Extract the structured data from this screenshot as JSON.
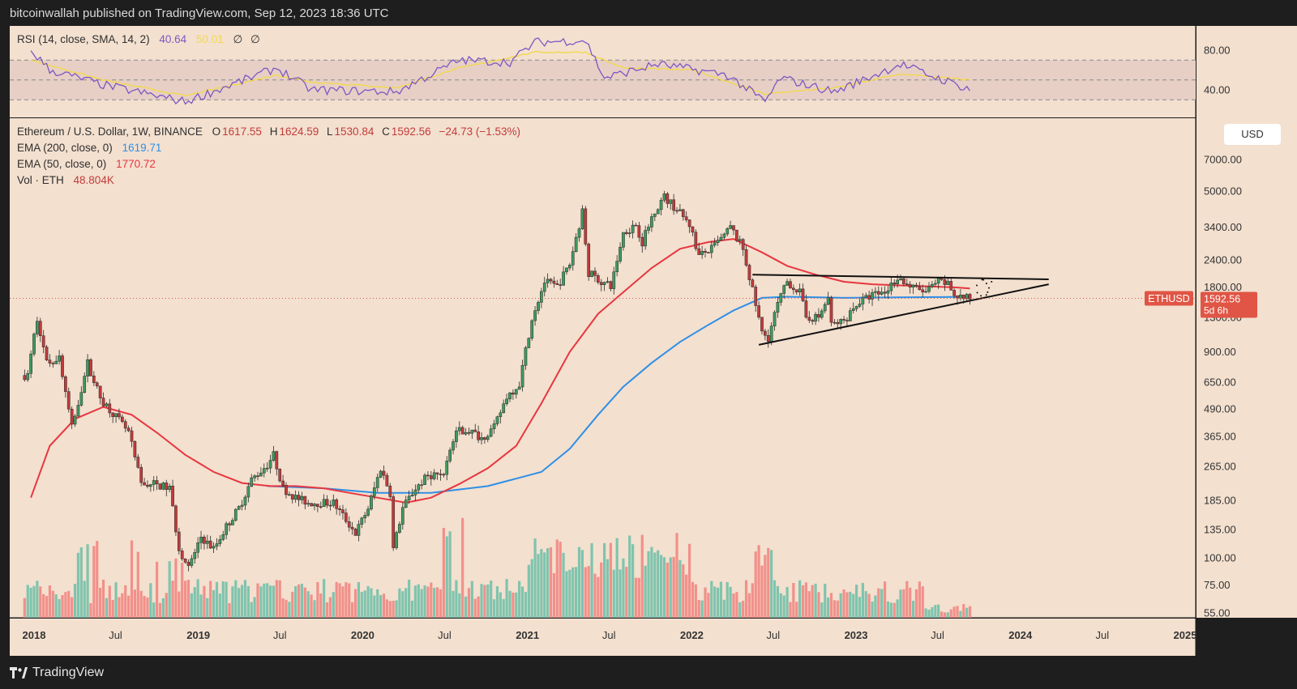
{
  "header": {
    "published_text": "bitcoinwallah published on TradingView.com, Sep 12, 2023 18:36 UTC"
  },
  "footer": {
    "brand": "TradingView"
  },
  "rsi_legend": {
    "name": "RSI (14, close, SMA, 14, 2)",
    "rsi_value": "40.64",
    "sma_value": "50.01",
    "extra1": "∅",
    "extra2": "∅"
  },
  "price_legend": {
    "symbol": "Ethereum / U.S. Dollar, 1W, BINANCE",
    "o_label": "O",
    "o_value": "1617.55",
    "h_label": "H",
    "h_value": "1624.59",
    "l_label": "L",
    "l_value": "1530.84",
    "c_label": "C",
    "c_value": "1592.56",
    "change": "−24.73 (−1.53%)",
    "ema200_label": "EMA (200, close, 0)",
    "ema200_value": "1619.71",
    "ema50_label": "EMA (50, close, 0)",
    "ema50_value": "1770.72",
    "vol_label": "Vol · ETH",
    "vol_value": "48.804K"
  },
  "currency_button": "USD",
  "price_tag": {
    "label": "ETHUSD",
    "value": "1592.56",
    "countdown": "5d 6h"
  },
  "colors": {
    "background": "#f3e0cf",
    "up_candle": "#3d9b5e",
    "down_candle": "#c23b3b",
    "ema50": "#e8363f",
    "ema200": "#2f8fe6",
    "rsi": "#7e57c2",
    "rsi_sma": "#f2d94e",
    "vol_up": "#7fc4ae",
    "vol_down": "#f2908a",
    "price_tag": "#e05545"
  },
  "chart_data": {
    "type": "candlestick",
    "title": "Ethereum / U.S. Dollar, 1W, BINANCE",
    "scale": "log",
    "y_ticks": [
      "7000.00",
      "5000.00",
      "3400.00",
      "2400.00",
      "1800.00",
      "1300.00",
      "900.00",
      "650.00",
      "490.00",
      "365.00",
      "265.00",
      "185.00",
      "135.00",
      "100.00",
      "75.00",
      "55.00"
    ],
    "x_ticks": [
      "2018",
      "Jul",
      "2019",
      "Jul",
      "2020",
      "Jul",
      "2021",
      "Jul",
      "2022",
      "Jul",
      "2023",
      "Jul",
      "2024",
      "Jul",
      "2025"
    ],
    "rsi_y_ticks": [
      "80.00",
      "40.00"
    ],
    "price_path": [
      [
        "2017-12-25",
        700
      ],
      [
        "2018-01-15",
        1300
      ],
      [
        "2018-02-05",
        800
      ],
      [
        "2018-03-05",
        850
      ],
      [
        "2018-04-02",
        400
      ],
      [
        "2018-05-07",
        800
      ],
      [
        "2018-06-04",
        550
      ],
      [
        "2018-07-02",
        470
      ],
      [
        "2018-08-06",
        380
      ],
      [
        "2018-09-03",
        220
      ],
      [
        "2018-10-01",
        220
      ],
      [
        "2018-11-05",
        210
      ],
      [
        "2018-11-26",
        110
      ],
      [
        "2018-12-17",
        90
      ],
      [
        "2019-01-14",
        125
      ],
      [
        "2019-02-11",
        110
      ],
      [
        "2019-03-11",
        140
      ],
      [
        "2019-04-08",
        170
      ],
      [
        "2019-05-06",
        230
      ],
      [
        "2019-06-10",
        270
      ],
      [
        "2019-06-24",
        300
      ],
      [
        "2019-07-15",
        210
      ],
      [
        "2019-08-12",
        190
      ],
      [
        "2019-09-09",
        180
      ],
      [
        "2019-10-07",
        180
      ],
      [
        "2019-11-04",
        180
      ],
      [
        "2019-12-02",
        150
      ],
      [
        "2019-12-23",
        130
      ],
      [
        "2020-01-20",
        170
      ],
      [
        "2020-02-17",
        260
      ],
      [
        "2020-03-09",
        200
      ],
      [
        "2020-03-16",
        110
      ],
      [
        "2020-04-06",
        170
      ],
      [
        "2020-05-04",
        210
      ],
      [
        "2020-06-01",
        240
      ],
      [
        "2020-07-06",
        250
      ],
      [
        "2020-08-03",
        390
      ],
      [
        "2020-08-31",
        390
      ],
      [
        "2020-09-28",
        360
      ],
      [
        "2020-10-26",
        400
      ],
      [
        "2020-11-23",
        560
      ],
      [
        "2020-12-21",
        640
      ],
      [
        "2021-01-18",
        1300
      ],
      [
        "2021-02-15",
        1900
      ],
      [
        "2021-03-15",
        1800
      ],
      [
        "2021-04-12",
        2300
      ],
      [
        "2021-05-10",
        4000
      ],
      [
        "2021-05-24",
        2100
      ],
      [
        "2021-06-21",
        1900
      ],
      [
        "2021-07-12",
        1800
      ],
      [
        "2021-08-09",
        3200
      ],
      [
        "2021-09-06",
        3500
      ],
      [
        "2021-09-20",
        2900
      ],
      [
        "2021-10-18",
        4100
      ],
      [
        "2021-11-08",
        4700
      ],
      [
        "2021-12-06",
        4100
      ],
      [
        "2022-01-03",
        3500
      ],
      [
        "2022-01-24",
        2500
      ],
      [
        "2022-02-21",
        2700
      ],
      [
        "2022-03-21",
        3100
      ],
      [
        "2022-04-04",
        3400
      ],
      [
        "2022-05-02",
        2700
      ],
      [
        "2022-05-16",
        2000
      ],
      [
        "2022-06-13",
        1100
      ],
      [
        "2022-06-27",
        1050
      ],
      [
        "2022-07-18",
        1500
      ],
      [
        "2022-08-08",
        1900
      ],
      [
        "2022-09-05",
        1700
      ],
      [
        "2022-09-19",
        1300
      ],
      [
        "2022-10-17",
        1300
      ],
      [
        "2022-11-07",
        1600
      ],
      [
        "2022-11-14",
        1200
      ],
      [
        "2022-12-12",
        1250
      ],
      [
        "2023-01-09",
        1500
      ],
      [
        "2023-02-13",
        1650
      ],
      [
        "2023-03-13",
        1700
      ],
      [
        "2023-04-10",
        2000
      ],
      [
        "2023-05-08",
        1800
      ],
      [
        "2023-06-12",
        1700
      ],
      [
        "2023-07-10",
        1900
      ],
      [
        "2023-07-31",
        1850
      ],
      [
        "2023-08-14",
        1650
      ],
      [
        "2023-09-11",
        1592
      ]
    ],
    "ema50_path": [
      [
        "2017-12-25",
        190
      ],
      [
        "2018-02-05",
        330
      ],
      [
        "2018-04-02",
        440
      ],
      [
        "2018-06-04",
        500
      ],
      [
        "2018-08-06",
        460
      ],
      [
        "2018-10-01",
        380
      ],
      [
        "2018-12-03",
        300
      ],
      [
        "2019-02-04",
        250
      ],
      [
        "2019-04-08",
        222
      ],
      [
        "2019-06-10",
        215
      ],
      [
        "2019-08-05",
        215
      ],
      [
        "2019-10-07",
        210
      ],
      [
        "2019-12-02",
        200
      ],
      [
        "2020-02-03",
        190
      ],
      [
        "2020-04-06",
        180
      ],
      [
        "2020-06-01",
        190
      ],
      [
        "2020-08-03",
        220
      ],
      [
        "2020-10-05",
        260
      ],
      [
        "2020-12-07",
        330
      ],
      [
        "2021-02-01",
        520
      ],
      [
        "2021-04-05",
        900
      ],
      [
        "2021-06-07",
        1350
      ],
      [
        "2021-08-02",
        1700
      ],
      [
        "2021-10-04",
        2200
      ],
      [
        "2021-12-06",
        2700
      ],
      [
        "2022-02-07",
        2900
      ],
      [
        "2022-04-04",
        3000
      ],
      [
        "2022-06-06",
        2600
      ],
      [
        "2022-08-01",
        2250
      ],
      [
        "2022-10-03",
        2050
      ],
      [
        "2022-12-05",
        1900
      ],
      [
        "2023-02-06",
        1850
      ],
      [
        "2023-04-03",
        1830
      ],
      [
        "2023-06-05",
        1810
      ],
      [
        "2023-08-07",
        1790
      ],
      [
        "2023-09-11",
        1770
      ]
    ],
    "ema200_path": [
      [
        "2019-06-03",
        215
      ],
      [
        "2019-10-07",
        210
      ],
      [
        "2020-02-03",
        200
      ],
      [
        "2020-06-01",
        200
      ],
      [
        "2020-10-05",
        215
      ],
      [
        "2021-02-01",
        250
      ],
      [
        "2021-04-05",
        320
      ],
      [
        "2021-06-07",
        460
      ],
      [
        "2021-08-02",
        620
      ],
      [
        "2021-10-04",
        800
      ],
      [
        "2021-12-06",
        1000
      ],
      [
        "2022-02-07",
        1200
      ],
      [
        "2022-04-04",
        1400
      ],
      [
        "2022-06-06",
        1600
      ],
      [
        "2022-08-01",
        1620
      ],
      [
        "2022-12-05",
        1600
      ],
      [
        "2023-04-03",
        1610
      ],
      [
        "2023-09-11",
        1619
      ]
    ],
    "rsi_path": [
      [
        "2017-12-25",
        80
      ],
      [
        "2018-02-05",
        60
      ],
      [
        "2018-06-04",
        45
      ],
      [
        "2018-12-03",
        28
      ],
      [
        "2019-06-24",
        62
      ],
      [
        "2019-09-09",
        40
      ],
      [
        "2020-03-16",
        38
      ],
      [
        "2020-08-03",
        70
      ],
      [
        "2020-11-23",
        68
      ],
      [
        "2021-01-18",
        88
      ],
      [
        "2021-05-10",
        90
      ],
      [
        "2021-06-21",
        52
      ],
      [
        "2021-10-18",
        66
      ],
      [
        "2022-03-21",
        55
      ],
      [
        "2022-06-13",
        28
      ],
      [
        "2022-07-18",
        52
      ],
      [
        "2022-11-14",
        38
      ],
      [
        "2023-04-10",
        66
      ],
      [
        "2023-06-12",
        55
      ],
      [
        "2023-09-11",
        40.64
      ]
    ],
    "rsi_sma_path": [
      [
        "2017-12-25",
        70
      ],
      [
        "2018-06-04",
        50
      ],
      [
        "2018-12-03",
        34
      ],
      [
        "2019-06-24",
        55
      ],
      [
        "2019-09-09",
        48
      ],
      [
        "2020-03-16",
        42
      ],
      [
        "2020-08-03",
        62
      ],
      [
        "2021-01-18",
        78
      ],
      [
        "2021-05-10",
        78
      ],
      [
        "2021-08-02",
        62
      ],
      [
        "2022-01-03",
        60
      ],
      [
        "2022-06-13",
        36
      ],
      [
        "2022-11-14",
        42
      ],
      [
        "2023-04-10",
        56
      ],
      [
        "2023-09-11",
        50.01
      ]
    ],
    "triangle_upper": [
      [
        "2022-05-16",
        2050
      ],
      [
        "2024-03-04",
        1950
      ]
    ],
    "triangle_lower": [
      [
        "2022-05-30",
        970
      ],
      [
        "2024-03-04",
        1850
      ]
    ]
  }
}
